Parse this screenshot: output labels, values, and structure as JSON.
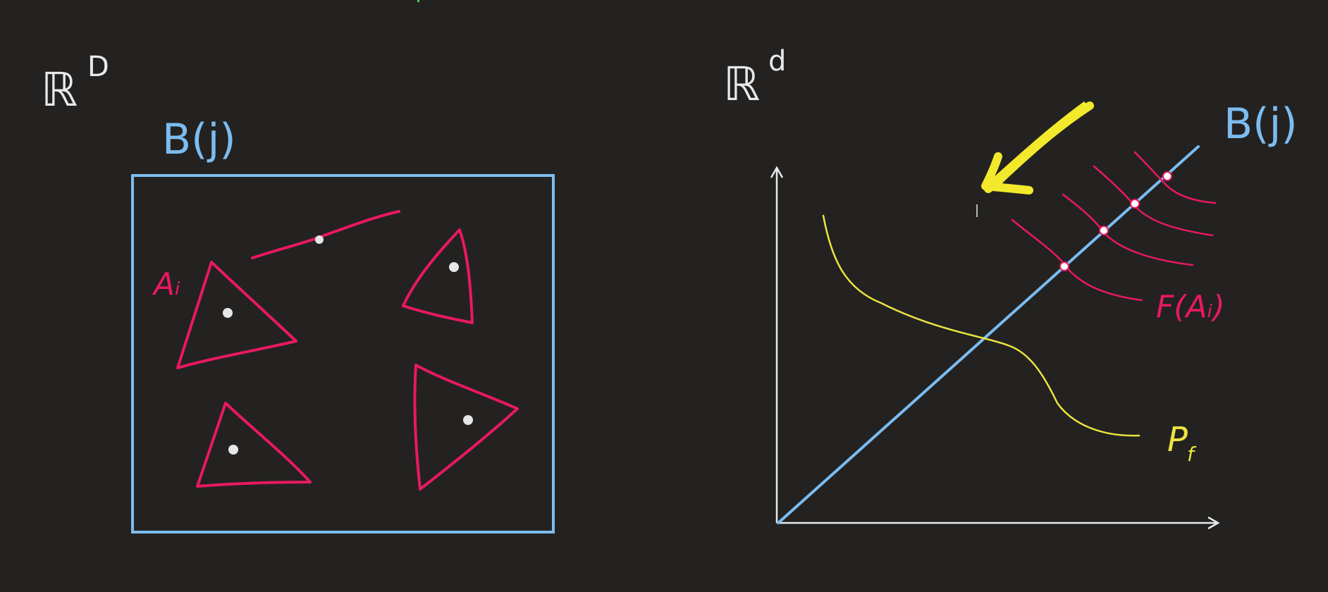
{
  "colors": {
    "background": "#232221",
    "white": "#e9e9e9",
    "blue": "#7cbcf0",
    "red": "#e8195f",
    "yellow": "#ece340",
    "dot": "#e6e6e6"
  },
  "left_panel": {
    "space_label": "ℝ",
    "space_sup": "D",
    "box_label": "B(j)",
    "region_label": "Aᵢ"
  },
  "right_panel": {
    "space_label": "ℝ",
    "space_sup": "d",
    "line_label": "B(j)",
    "curves_label": "F(Aᵢ)",
    "front_label": "P",
    "front_sub": "f"
  }
}
